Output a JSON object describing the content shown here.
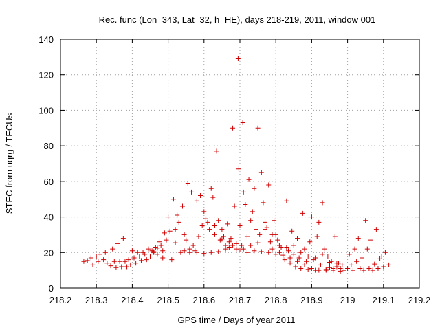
{
  "chart_data": {
    "type": "scatter",
    "title": "Rec. func (Lon=343, Lat=32, h=HE), days 218-219, 2011, window 001",
    "xlabel": "GPS time / Days of year 2011",
    "ylabel": "STEC from uqrg / TECUs",
    "xlim": [
      218.2,
      219.2
    ],
    "ylim": [
      0,
      140
    ],
    "xticks": [
      "218.2",
      "218.3",
      "218.4",
      "218.5",
      "218.6",
      "218.7",
      "218.8",
      "218.9",
      "219",
      "219.1",
      "219.2"
    ],
    "yticks": [
      "0",
      "20",
      "40",
      "60",
      "80",
      "100",
      "120",
      "140"
    ],
    "grid": true,
    "marker": "plus",
    "color": "#d00000",
    "series": [
      {
        "points": [
          [
            218.265,
            15
          ],
          [
            218.275,
            15.5
          ],
          [
            218.285,
            17
          ],
          [
            218.29,
            13
          ],
          [
            218.3,
            18
          ],
          [
            218.305,
            15
          ],
          [
            218.31,
            19
          ],
          [
            218.32,
            16
          ],
          [
            218.325,
            20
          ],
          [
            218.33,
            14
          ],
          [
            218.335,
            18
          ],
          [
            218.34,
            12.5
          ],
          [
            218.345,
            22
          ],
          [
            218.35,
            15
          ],
          [
            218.355,
            11.5
          ],
          [
            218.36,
            25
          ],
          [
            218.365,
            15
          ],
          [
            218.37,
            12
          ],
          [
            218.375,
            28
          ],
          [
            218.38,
            15
          ],
          [
            218.385,
            12
          ],
          [
            218.39,
            16
          ],
          [
            218.395,
            13
          ],
          [
            218.4,
            21
          ],
          [
            218.405,
            17
          ],
          [
            218.41,
            14
          ],
          [
            218.415,
            20
          ],
          [
            218.42,
            18
          ],
          [
            218.425,
            15.5
          ],
          [
            218.43,
            20
          ],
          [
            218.435,
            19
          ],
          [
            218.44,
            16
          ],
          [
            218.445,
            22
          ],
          [
            218.45,
            18
          ],
          [
            218.455,
            21
          ],
          [
            218.46,
            20
          ],
          [
            218.465,
            23
          ],
          [
            218.47,
            19
          ],
          [
            218.475,
            26
          ],
          [
            218.48,
            24
          ],
          [
            218.485,
            17
          ],
          [
            218.49,
            31
          ],
          [
            218.495,
            27
          ],
          [
            218.5,
            40
          ],
          [
            218.505,
            32
          ],
          [
            218.51,
            16
          ],
          [
            218.515,
            50
          ],
          [
            218.52,
            33
          ],
          [
            218.525,
            41
          ],
          [
            218.53,
            37
          ],
          [
            218.535,
            20
          ],
          [
            218.54,
            46
          ],
          [
            218.545,
            30
          ],
          [
            218.55,
            27
          ],
          [
            218.555,
            59
          ],
          [
            218.56,
            22
          ],
          [
            218.565,
            54
          ],
          [
            218.57,
            24
          ],
          [
            218.575,
            21
          ],
          [
            218.58,
            49
          ],
          [
            218.585,
            29
          ],
          [
            218.59,
            52
          ],
          [
            218.595,
            35
          ],
          [
            218.6,
            43
          ],
          [
            218.605,
            39
          ],
          [
            218.61,
            37
          ],
          [
            218.615,
            33
          ],
          [
            218.62,
            56
          ],
          [
            218.625,
            51
          ],
          [
            218.63,
            30
          ],
          [
            218.635,
            77
          ],
          [
            218.64,
            38
          ],
          [
            218.645,
            27
          ],
          [
            218.65,
            33
          ],
          [
            218.655,
            29
          ],
          [
            218.66,
            24
          ],
          [
            218.665,
            36
          ],
          [
            218.67,
            23
          ],
          [
            218.675,
            28
          ],
          [
            218.68,
            90
          ],
          [
            218.685,
            46
          ],
          [
            218.69,
            22
          ],
          [
            218.695,
            129
          ],
          [
            218.697,
            67
          ],
          [
            218.7,
            35
          ],
          [
            218.705,
            24
          ],
          [
            218.708,
            93
          ],
          [
            218.71,
            54
          ],
          [
            218.715,
            47
          ],
          [
            218.72,
            29
          ],
          [
            218.725,
            61
          ],
          [
            218.73,
            38
          ],
          [
            218.735,
            43
          ],
          [
            218.74,
            56
          ],
          [
            218.745,
            33
          ],
          [
            218.75,
            90
          ],
          [
            218.755,
            30
          ],
          [
            218.76,
            65
          ],
          [
            218.765,
            48
          ],
          [
            218.77,
            37
          ],
          [
            218.775,
            34
          ],
          [
            218.78,
            58
          ],
          [
            218.785,
            26
          ],
          [
            218.79,
            22
          ],
          [
            218.795,
            38
          ],
          [
            218.8,
            30
          ],
          [
            218.805,
            27
          ],
          [
            218.81,
            20
          ],
          [
            218.815,
            23
          ],
          [
            218.82,
            18
          ],
          [
            218.825,
            16
          ],
          [
            218.83,
            49
          ],
          [
            218.835,
            21
          ],
          [
            218.84,
            14
          ],
          [
            218.845,
            32
          ],
          [
            218.85,
            19
          ],
          [
            218.855,
            12
          ],
          [
            218.86,
            28
          ],
          [
            218.865,
            17
          ],
          [
            218.87,
            11
          ],
          [
            218.875,
            42
          ],
          [
            218.88,
            22
          ],
          [
            218.885,
            15
          ],
          [
            218.89,
            10.5
          ],
          [
            218.895,
            26
          ],
          [
            218.9,
            40
          ],
          [
            218.905,
            16
          ],
          [
            218.91,
            10
          ],
          [
            218.915,
            29
          ],
          [
            218.92,
            37
          ],
          [
            218.925,
            13
          ],
          [
            218.93,
            48
          ],
          [
            218.935,
            22
          ],
          [
            218.94,
            10
          ],
          [
            218.945,
            18
          ],
          [
            218.95,
            11.5
          ],
          [
            218.955,
            15
          ],
          [
            218.96,
            10
          ],
          [
            218.965,
            29
          ],
          [
            218.97,
            12
          ],
          [
            218.975,
            14
          ],
          [
            218.98,
            9.5
          ],
          [
            218.985,
            13
          ],
          [
            218.99,
            10
          ],
          [
            219.0,
            11
          ],
          [
            219.005,
            19
          ],
          [
            219.01,
            13
          ],
          [
            219.015,
            10
          ],
          [
            219.02,
            22
          ],
          [
            219.025,
            15
          ],
          [
            219.03,
            28
          ],
          [
            219.035,
            11
          ],
          [
            219.04,
            17
          ],
          [
            219.045,
            10
          ],
          [
            219.05,
            38
          ],
          [
            219.055,
            22
          ],
          [
            219.06,
            11
          ],
          [
            219.065,
            27
          ],
          [
            219.07,
            10
          ],
          [
            219.075,
            13.5
          ],
          [
            219.08,
            33
          ],
          [
            219.085,
            11
          ],
          [
            219.09,
            16.5
          ],
          [
            219.095,
            18
          ],
          [
            219.1,
            12
          ],
          [
            219.105,
            20
          ],
          [
            219.115,
            13
          ],
          [
            218.46,
            20.5
          ],
          [
            218.47,
            22.5
          ],
          [
            218.485,
            21
          ],
          [
            218.52,
            25.5
          ],
          [
            218.545,
            21
          ],
          [
            218.56,
            20
          ],
          [
            218.58,
            20
          ],
          [
            218.6,
            19.5
          ],
          [
            218.62,
            20
          ],
          [
            218.64,
            20.5
          ],
          [
            218.66,
            22
          ],
          [
            218.68,
            24
          ],
          [
            218.7,
            21.5
          ],
          [
            218.72,
            20
          ],
          [
            218.74,
            21
          ],
          [
            218.76,
            20.5
          ],
          [
            218.78,
            20
          ],
          [
            218.8,
            19
          ],
          [
            218.82,
            18.5
          ],
          [
            218.84,
            17
          ],
          [
            218.86,
            15
          ],
          [
            218.88,
            13
          ],
          [
            218.9,
            11
          ],
          [
            218.92,
            10
          ],
          [
            218.94,
            10.5
          ],
          [
            218.96,
            11
          ],
          [
            218.98,
            11
          ],
          [
            218.63,
            35
          ],
          [
            218.65,
            27.5
          ],
          [
            218.67,
            26
          ],
          [
            218.69,
            25
          ],
          [
            218.71,
            22
          ],
          [
            218.73,
            24
          ],
          [
            218.75,
            25.5
          ],
          [
            218.77,
            33
          ],
          [
            218.79,
            30
          ],
          [
            218.81,
            24
          ],
          [
            218.83,
            23
          ],
          [
            218.85,
            24
          ],
          [
            218.87,
            20
          ],
          [
            218.89,
            18
          ],
          [
            218.91,
            17
          ],
          [
            218.93,
            19
          ],
          [
            218.95,
            14.5
          ],
          [
            218.97,
            14
          ]
        ]
      }
    ]
  }
}
